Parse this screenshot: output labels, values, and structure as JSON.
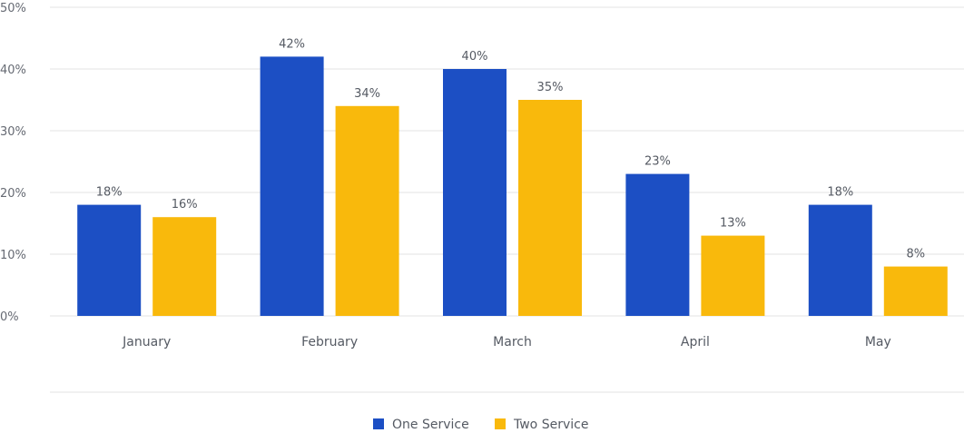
{
  "chart_data": {
    "type": "bar",
    "categories": [
      "January",
      "February",
      "March",
      "April",
      "May"
    ],
    "series": [
      {
        "name": "One Service",
        "color": "#1c4fc4",
        "values": [
          18,
          42,
          40,
          23,
          18
        ],
        "labels": [
          "18%",
          "42%",
          "40%",
          "23%",
          "18%"
        ]
      },
      {
        "name": "Two Service",
        "color": "#f9b90c",
        "values": [
          16,
          34,
          35,
          13,
          8
        ],
        "labels": [
          "16%",
          "34%",
          "35%",
          "13%",
          "8%"
        ]
      }
    ],
    "ylim": [
      0,
      50
    ],
    "yticks": [
      "0%",
      "10%",
      "20%",
      "30%",
      "40%",
      "50%"
    ],
    "grid": true,
    "legend": "bottom",
    "xlabel": "",
    "ylabel": "",
    "title": ""
  }
}
